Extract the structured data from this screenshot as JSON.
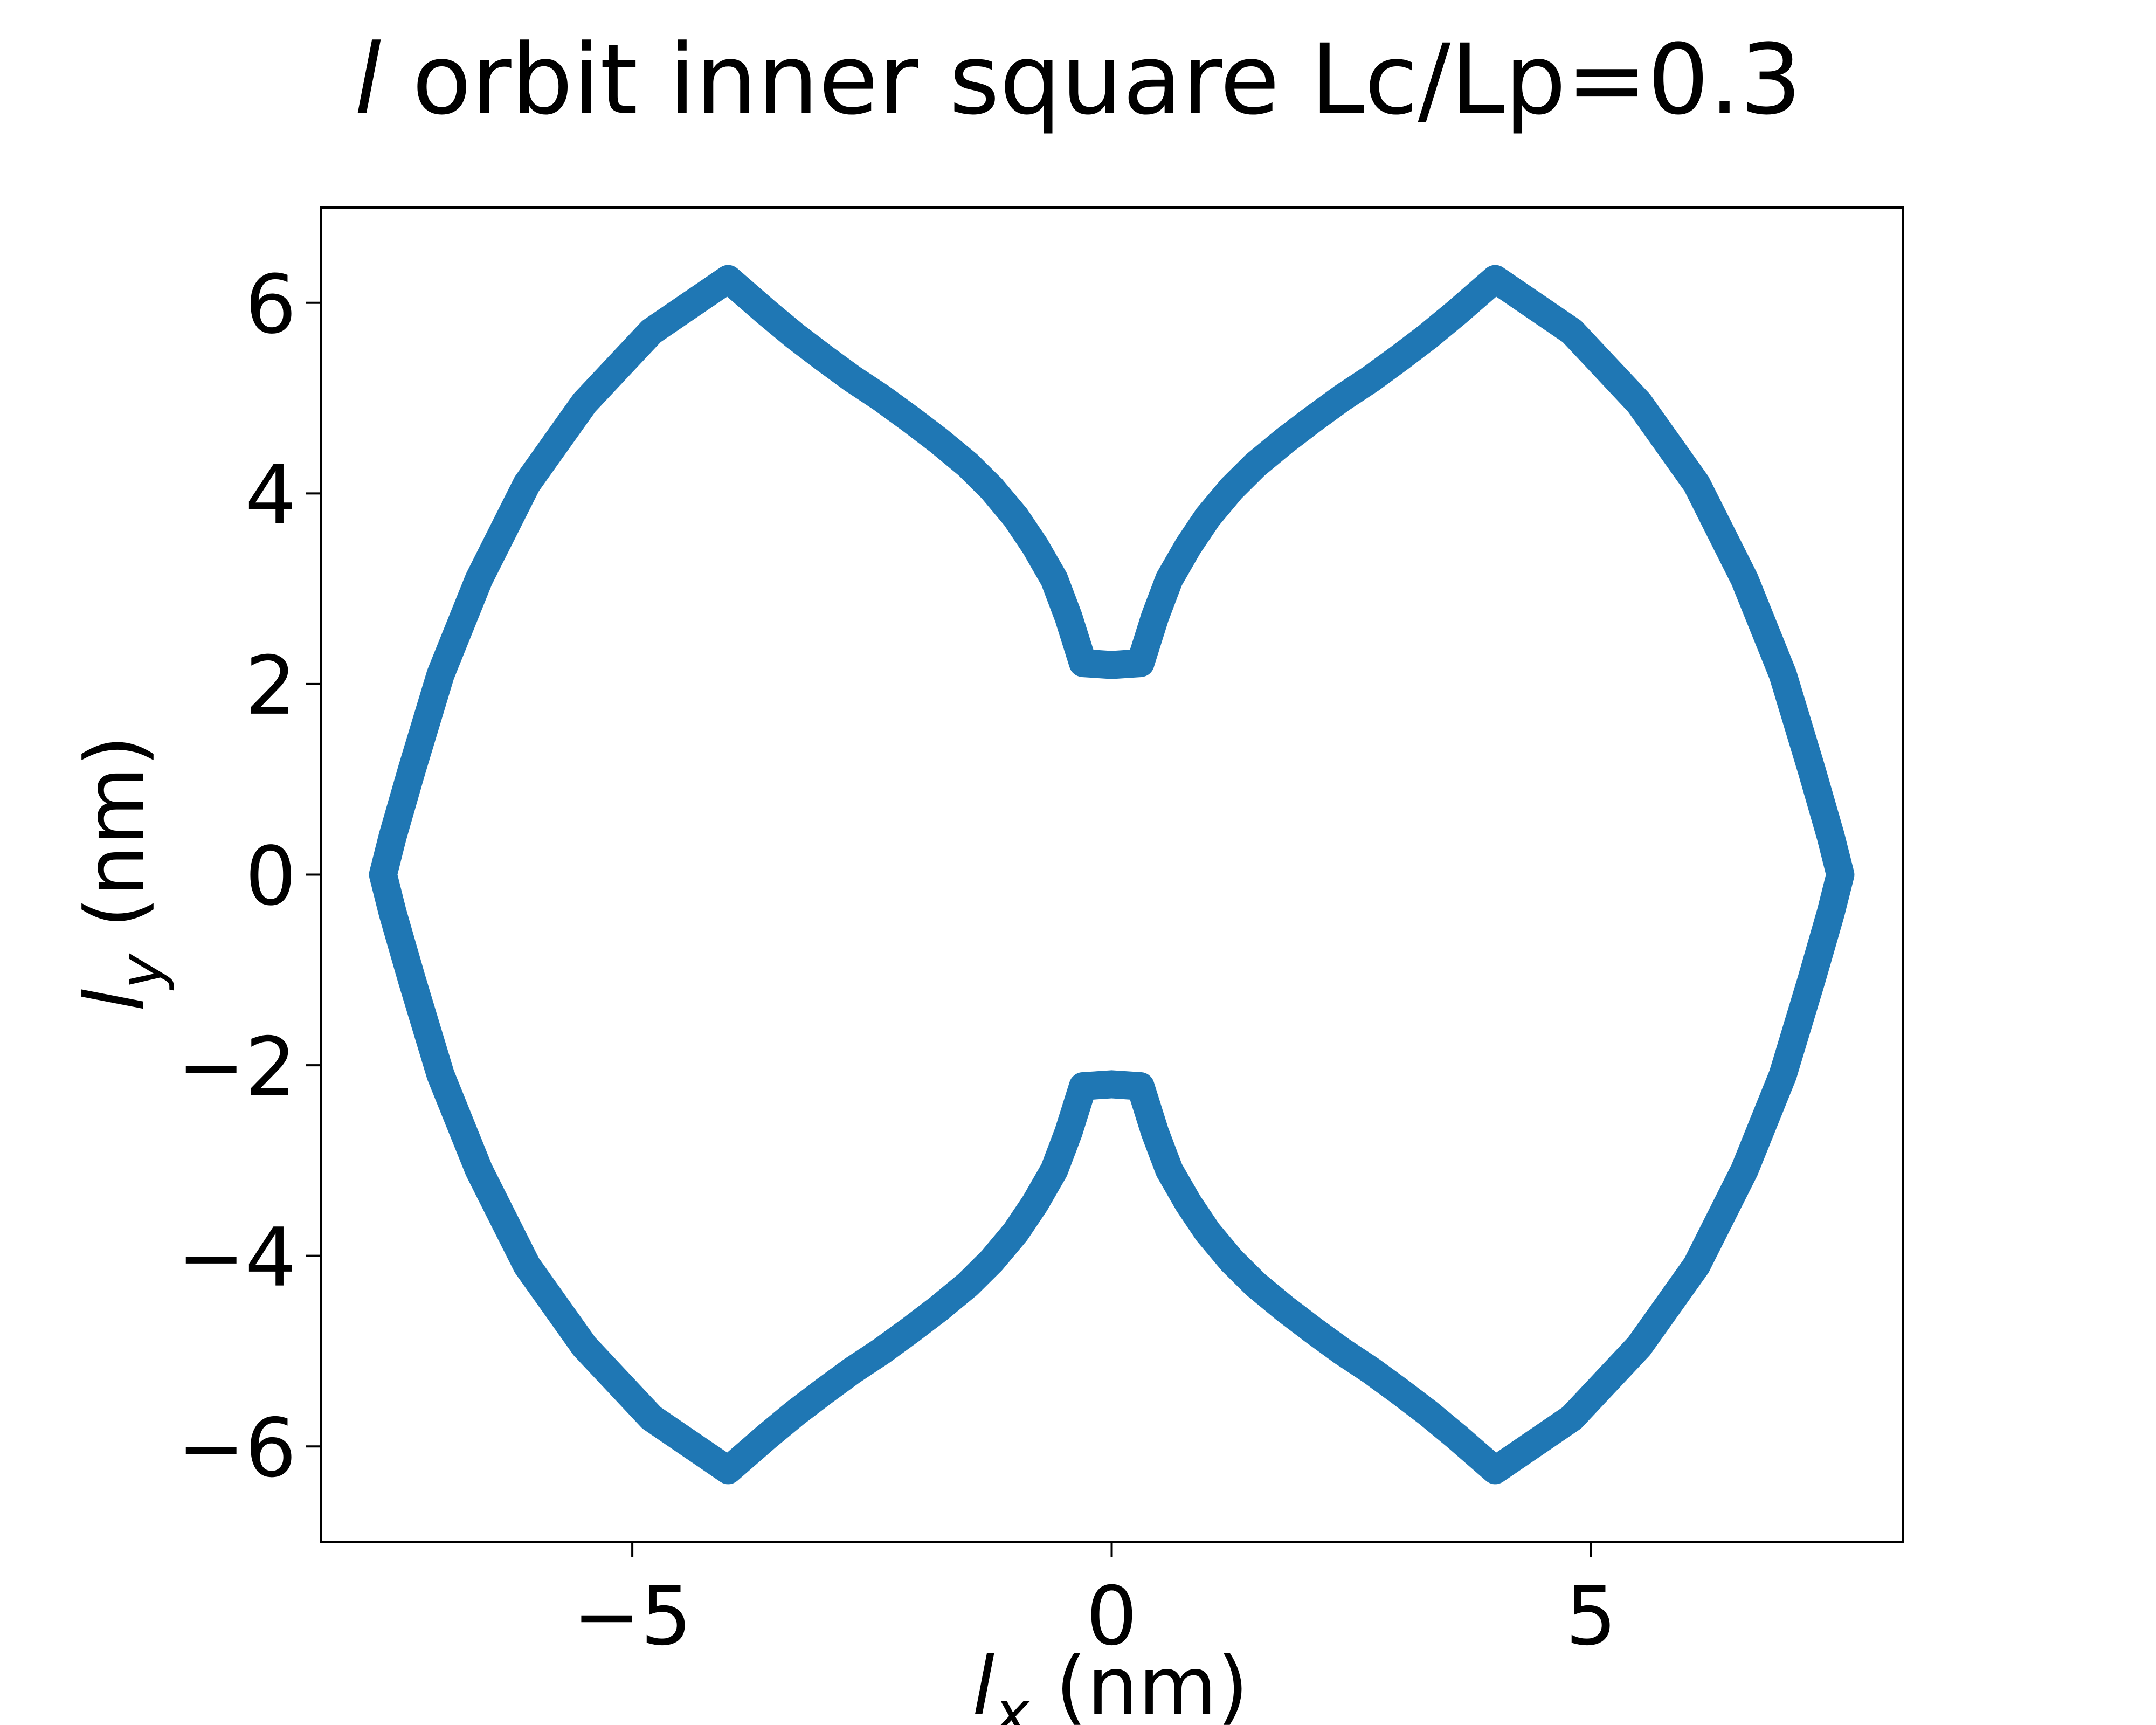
{
  "chart_data": {
    "type": "line",
    "title": {
      "symbol": "l",
      "rest": " orbit inner square Lc/Lp=0.3"
    },
    "xlabel": {
      "symbol": "l",
      "sub": "x",
      "unit": " (nm)"
    },
    "ylabel": {
      "symbol": "l",
      "sub": "y",
      "unit": " (nm)"
    },
    "xlim": [
      -8.25,
      8.25
    ],
    "ylim": [
      -7.0,
      7.0
    ],
    "xticks": [
      {
        "value": -5,
        "label": "−5"
      },
      {
        "value": 0,
        "label": "0"
      },
      {
        "value": 5,
        "label": "5"
      }
    ],
    "yticks": [
      {
        "value": -6,
        "label": "−6"
      },
      {
        "value": -4,
        "label": "−4"
      },
      {
        "value": -2,
        "label": "−2"
      },
      {
        "value": 0,
        "label": "0"
      },
      {
        "value": 2,
        "label": "2"
      },
      {
        "value": 4,
        "label": "4"
      },
      {
        "value": 6,
        "label": "6"
      }
    ],
    "grid": false,
    "series": [
      {
        "color": "#1f77b4",
        "x": [
          0.3,
          0.45,
          0.6,
          0.8,
          1.0,
          1.25,
          1.5,
          1.8,
          2.1,
          2.4,
          2.7,
          3.0,
          3.3,
          3.6,
          4.0,
          4.8,
          5.5,
          6.1,
          6.6,
          7.0,
          7.3,
          7.5,
          7.6,
          7.5,
          7.3,
          7.0,
          6.6,
          6.1,
          5.5,
          4.8,
          4.0,
          3.6,
          3.3,
          3.0,
          2.7,
          2.4,
          2.1,
          1.8,
          1.5,
          1.25,
          1.0,
          0.8,
          0.6,
          0.45,
          0.3,
          0.0,
          -0.3,
          -0.45,
          -0.6,
          -0.8,
          -1.0,
          -1.25,
          -1.5,
          -1.8,
          -2.1,
          -2.4,
          -2.7,
          -3.0,
          -3.3,
          -3.6,
          -4.0,
          -4.8,
          -5.5,
          -6.1,
          -6.6,
          -7.0,
          -7.3,
          -7.5,
          -7.6,
          -7.5,
          -7.3,
          -7.0,
          -6.6,
          -6.1,
          -5.5,
          -4.8,
          -4.0,
          -3.6,
          -3.3,
          -3.0,
          -2.7,
          -2.4,
          -2.1,
          -1.8,
          -1.5,
          -1.25,
          -1.0,
          -0.8,
          -0.6,
          -0.45,
          -0.3,
          0.0,
          0.3
        ],
        "y": [
          2.22,
          2.7,
          3.1,
          3.45,
          3.75,
          4.05,
          4.3,
          4.55,
          4.78,
          5.0,
          5.2,
          5.42,
          5.65,
          5.9,
          6.25,
          5.7,
          4.95,
          4.1,
          3.1,
          2.1,
          1.1,
          0.4,
          0.0,
          -0.4,
          -1.1,
          -2.1,
          -3.1,
          -4.1,
          -4.95,
          -5.7,
          -6.25,
          -5.9,
          -5.65,
          -5.42,
          -5.2,
          -5.0,
          -4.78,
          -4.55,
          -4.3,
          -4.05,
          -3.75,
          -3.45,
          -3.1,
          -2.7,
          -2.22,
          -2.2,
          -2.22,
          -2.7,
          -3.1,
          -3.45,
          -3.75,
          -4.05,
          -4.3,
          -4.55,
          -4.78,
          -5.0,
          -5.2,
          -5.42,
          -5.65,
          -5.9,
          -6.25,
          -5.7,
          -4.95,
          -4.1,
          -3.1,
          -2.1,
          -1.1,
          -0.4,
          0.0,
          0.4,
          1.1,
          2.1,
          3.1,
          4.1,
          4.95,
          5.7,
          6.25,
          5.9,
          5.65,
          5.42,
          5.2,
          5.0,
          4.78,
          4.55,
          4.3,
          4.05,
          3.75,
          3.45,
          3.1,
          2.7,
          2.22,
          2.2,
          2.22
        ]
      }
    ]
  }
}
